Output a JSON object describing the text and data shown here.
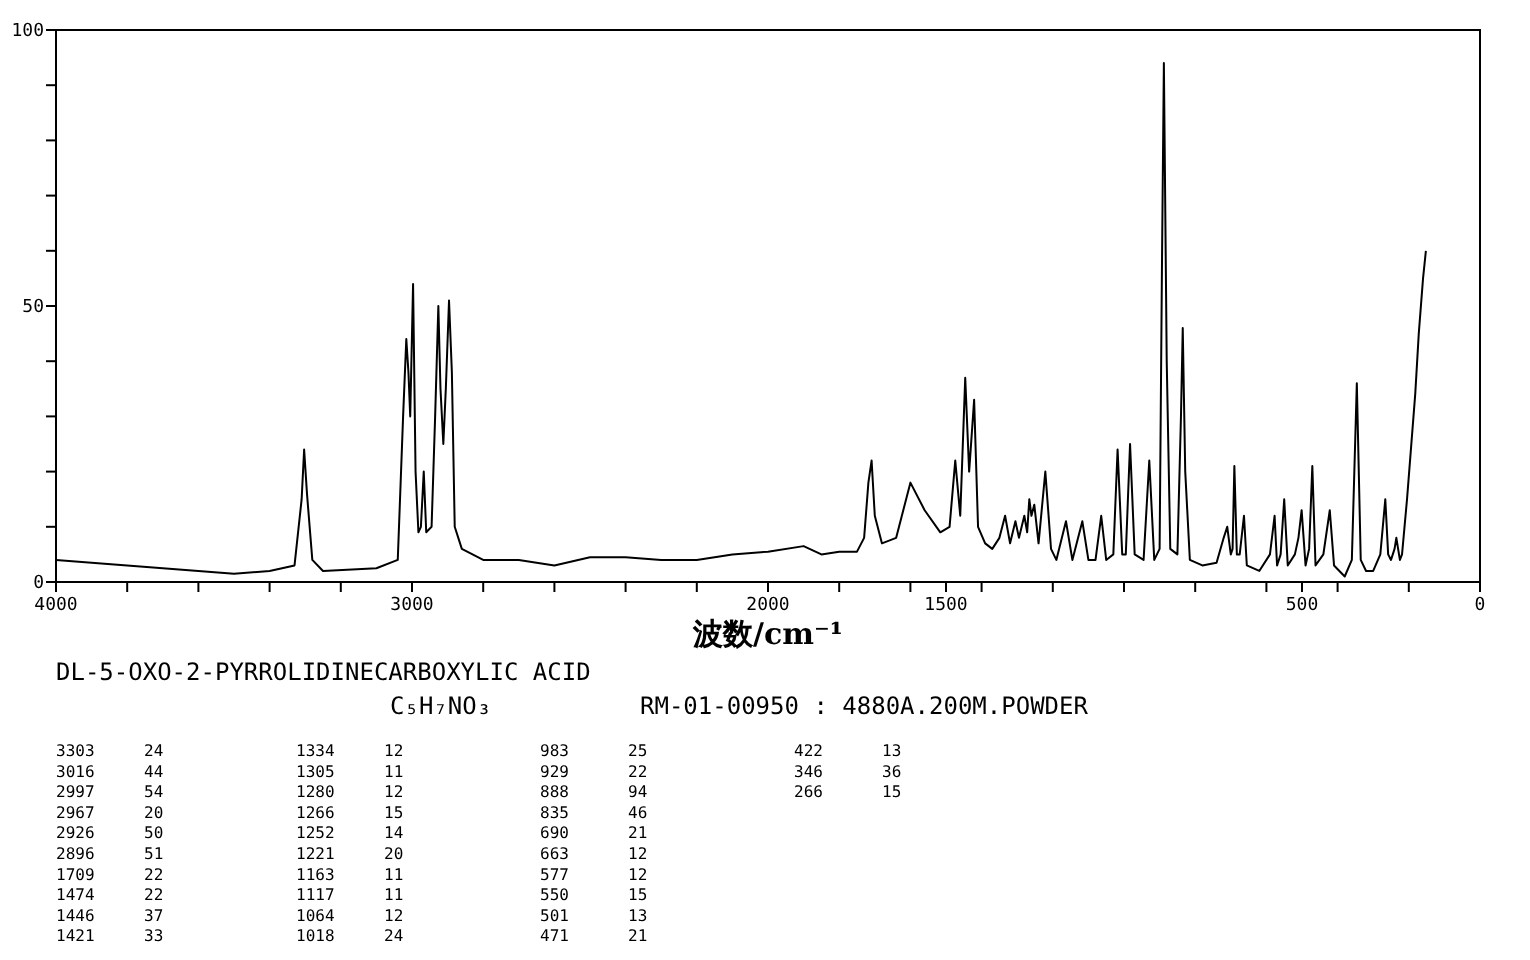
{
  "chart_data": {
    "type": "line",
    "title": "DL-5-OXO-2-PYRROLIDINECARBOXYLIC ACID",
    "subtitle": "C₅H₇NO₃",
    "xlabel": "波数/cm⁻¹",
    "xlim": [
      4000,
      0
    ],
    "ylim": [
      0,
      100
    ],
    "xticks": [
      4000,
      {
        "value": 3800,
        "label": null
      },
      {
        "value": 3600,
        "label": null
      },
      {
        "value": 3400,
        "label": null
      },
      {
        "value": 3200,
        "label": null
      },
      3000,
      {
        "value": 2800,
        "label": null
      },
      {
        "value": 2600,
        "label": null
      },
      {
        "value": 2400,
        "label": null
      },
      {
        "value": 2200,
        "label": null
      },
      2000,
      {
        "value": 1800,
        "label": null
      },
      {
        "value": 1600,
        "label": null
      },
      1500,
      {
        "value": 1400,
        "label": null
      },
      {
        "value": 1200,
        "label": null
      },
      {
        "value": 1000,
        "label": null
      },
      {
        "value": 800,
        "label": null
      },
      {
        "value": 600,
        "label": null
      },
      500,
      {
        "value": 400,
        "label": null
      },
      {
        "value": 200,
        "label": null
      },
      0
    ],
    "yticks": [
      0,
      {
        "value": 10,
        "label": null
      },
      {
        "value": 20,
        "label": null
      },
      {
        "value": 30,
        "label": null
      },
      {
        "value": 40,
        "label": null
      },
      50,
      {
        "value": 60,
        "label": null
      },
      {
        "value": 70,
        "label": null
      },
      {
        "value": 80,
        "label": null
      },
      {
        "value": 90,
        "label": null
      },
      100
    ],
    "grid": false,
    "marker": "none",
    "line_style": "solid",
    "series": [
      {
        "color": "#000000",
        "x": [
          4000,
          3800,
          3600,
          3500,
          3400,
          3330,
          3310,
          3303,
          3295,
          3280,
          3250,
          3100,
          3040,
          3025,
          3016,
          3010,
          3005,
          2997,
          2990,
          2982,
          2975,
          2967,
          2960,
          2945,
          2935,
          2926,
          2920,
          2912,
          2905,
          2896,
          2888,
          2880,
          2860,
          2800,
          2700,
          2600,
          2500,
          2400,
          2300,
          2200,
          2100,
          2000,
          1900,
          1850,
          1800,
          1750,
          1730,
          1718,
          1709,
          1700,
          1680,
          1640,
          1600,
          1560,
          1516,
          1490,
          1474,
          1460,
          1446,
          1435,
          1421,
          1410,
          1390,
          1370,
          1350,
          1334,
          1320,
          1305,
          1295,
          1280,
          1272,
          1266,
          1260,
          1252,
          1240,
          1221,
          1205,
          1190,
          1163,
          1145,
          1117,
          1100,
          1080,
          1064,
          1050,
          1030,
          1018,
          1005,
          995,
          983,
          970,
          945,
          929,
          915,
          900,
          893,
          888,
          880,
          870,
          850,
          840,
          835,
          828,
          815,
          780,
          740,
          720,
          710,
          700,
          695,
          690,
          683,
          675,
          663,
          655,
          620,
          590,
          577,
          570,
          560,
          550,
          540,
          520,
          510,
          501,
          490,
          480,
          471,
          462,
          440,
          422,
          410,
          380,
          360,
          346,
          335,
          320,
          300,
          280,
          266,
          258,
          250,
          240,
          235,
          225,
          219,
          205,
          182,
          172,
          160,
          152
        ],
        "values": [
          4,
          3,
          2,
          1.5,
          2,
          3,
          15,
          24,
          16,
          4,
          2,
          2.5,
          4,
          30,
          44,
          38,
          30,
          54,
          20,
          9,
          10,
          20,
          9,
          10,
          30,
          50,
          35,
          25,
          35,
          51,
          38,
          10,
          6,
          4,
          4,
          3,
          4.5,
          4.5,
          4,
          4,
          5,
          5.5,
          6.5,
          5,
          5.5,
          5.5,
          8,
          18,
          22,
          12,
          7,
          8,
          18,
          13,
          9,
          10,
          22,
          12,
          37,
          20,
          33,
          10,
          7,
          6,
          8,
          12,
          7,
          11,
          8,
          12,
          9,
          15,
          12,
          14,
          7,
          20,
          6,
          4,
          11,
          4,
          11,
          4,
          4,
          12,
          4,
          5,
          24,
          5,
          5,
          25,
          5,
          4,
          22,
          4,
          6,
          60,
          94,
          40,
          6,
          5,
          30,
          46,
          20,
          4,
          3,
          3.5,
          8,
          10,
          5,
          6,
          21,
          5,
          5,
          12,
          3,
          2,
          5,
          12,
          3,
          5,
          15,
          3,
          5,
          8,
          13,
          3,
          6,
          21,
          3,
          5,
          13,
          3,
          1,
          4,
          36,
          4,
          2,
          2,
          5,
          15,
          5,
          4,
          6,
          8,
          4,
          5,
          15,
          34,
          45,
          55,
          60
        ]
      }
    ],
    "annotations": [
      "RM-01-00950 : 4880A.200M.POWDER",
      "3303",
      "24",
      "3016",
      "44",
      "2997",
      "54",
      "2967",
      "20",
      "2926",
      "50",
      "2896",
      "51",
      "1709",
      "22",
      "1474",
      "22",
      "1446",
      "37",
      "1421",
      "33",
      "1334",
      "12",
      "1305",
      "11",
      "1280",
      "12",
      "1266",
      "15",
      "1252",
      "14",
      "1221",
      "20",
      "1163",
      "11",
      "1117",
      "11",
      "1064",
      "12",
      "1018",
      "24",
      "983",
      "25",
      "929",
      "22",
      "888",
      "94",
      "835",
      "46",
      "690",
      "21",
      "663",
      "12",
      "577",
      "12",
      "550",
      "15",
      "501",
      "13",
      "471",
      "21",
      "422",
      "13",
      "346",
      "36",
      "266",
      "15"
    ]
  }
}
